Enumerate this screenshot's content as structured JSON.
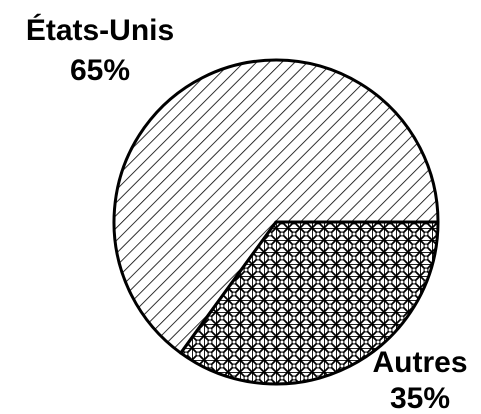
{
  "chart_data": {
    "type": "pie",
    "categories": [
      "États-Unis",
      "Autres"
    ],
    "values": [
      65,
      35
    ],
    "value_labels": [
      "65%",
      "35%"
    ]
  }
}
